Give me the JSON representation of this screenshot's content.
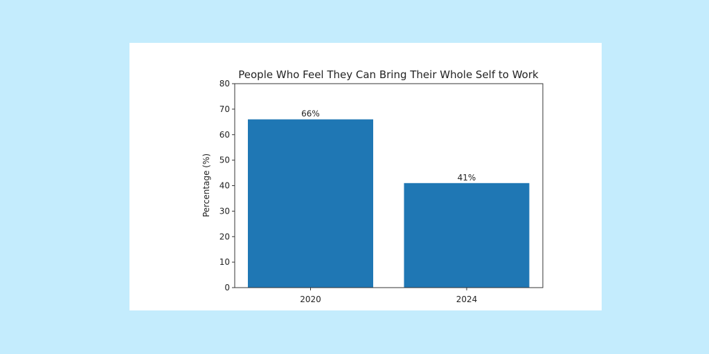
{
  "chart_data": {
    "type": "bar",
    "title": "People Who Feel They Can Bring Their Whole Self to Work",
    "xlabel": "",
    "ylabel": "Percentage (%)",
    "categories": [
      "2020",
      "2024"
    ],
    "values": [
      66,
      41
    ],
    "value_labels": [
      "66%",
      "41%"
    ],
    "ylim": [
      0,
      80
    ],
    "yticks": [
      0,
      10,
      20,
      30,
      40,
      50,
      60,
      70,
      80
    ],
    "grid": false,
    "legend": null,
    "bar_color": "#1f77b4"
  },
  "colors": {
    "background": "#c4ecfd",
    "card": "#ffffff",
    "bar": "#1f77b4"
  }
}
